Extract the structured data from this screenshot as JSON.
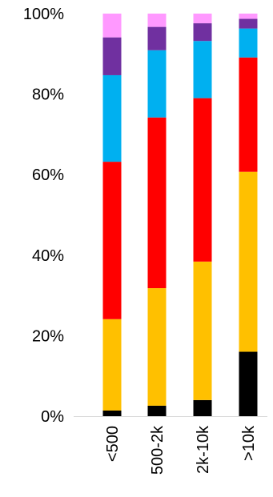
{
  "chart_data": {
    "type": "bar",
    "stacked": true,
    "percent": true,
    "categories": [
      "<500",
      "500-2k",
      "2k-10k",
      ">10k"
    ],
    "y_ticks": [
      "0%",
      "20%",
      "40%",
      "60%",
      "80%",
      "100%"
    ],
    "ylim": [
      0,
      100
    ],
    "grid": false,
    "legend": "none",
    "series": [
      {
        "color": "#000000",
        "values": [
          1.4,
          2.6,
          4.0,
          16.0
        ]
      },
      {
        "color": "#FFC000",
        "values": [
          22.7,
          29.2,
          34.4,
          44.7
        ]
      },
      {
        "color": "#FF0000",
        "values": [
          39.1,
          42.4,
          40.6,
          28.4
        ]
      },
      {
        "color": "#00B0F0",
        "values": [
          21.5,
          16.7,
          14.2,
          7.2
        ]
      },
      {
        "color": "#7030A0",
        "values": [
          9.4,
          5.8,
          4.4,
          2.4
        ]
      },
      {
        "color": "#FF99FF",
        "values": [
          5.9,
          3.3,
          2.4,
          1.3
        ]
      }
    ]
  }
}
